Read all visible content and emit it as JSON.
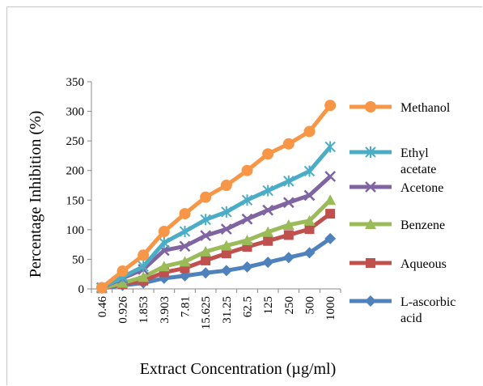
{
  "chart_data": {
    "type": "line",
    "xlabel": "Extract Concentration (µg/ml)",
    "ylabel": "Percentage Inhibition (%)",
    "ylim": [
      0,
      350
    ],
    "yticks": [
      0,
      50,
      100,
      150,
      200,
      250,
      300,
      350
    ],
    "categories": [
      "0.46",
      "0.926",
      "1.853",
      "3.903",
      "7.81",
      "15.625",
      "31.25",
      "62.5",
      "125",
      "250",
      "500",
      "1000"
    ],
    "grid": false,
    "legend": "right",
    "series": [
      {
        "name": "Methanol",
        "color": "#f79646",
        "marker": "circle",
        "label_lines": [
          "Methanol"
        ],
        "values": [
          2,
          30,
          57,
          97,
          127,
          155,
          175,
          200,
          228,
          245,
          266,
          310
        ]
      },
      {
        "name": "Ethyl acetate",
        "color": "#4bacc6",
        "marker": "asterisk",
        "label_lines": [
          "Ethyl",
          "acetate"
        ],
        "values": [
          2,
          20,
          38,
          78,
          97,
          117,
          130,
          150,
          166,
          182,
          199,
          240
        ]
      },
      {
        "name": "Acetone",
        "color": "#8064a2",
        "marker": "x",
        "label_lines": [
          "Acetone"
        ],
        "values": [
          2,
          18,
          33,
          65,
          72,
          90,
          101,
          118,
          133,
          146,
          158,
          190
        ]
      },
      {
        "name": "Benzene",
        "color": "#9bbb59",
        "marker": "triangle",
        "label_lines": [
          "Benzene"
        ],
        "values": [
          1,
          10,
          20,
          38,
          46,
          63,
          73,
          82,
          96,
          108,
          115,
          150
        ]
      },
      {
        "name": "Aqueous",
        "color": "#c0504d",
        "marker": "square",
        "label_lines": [
          "Aqueous"
        ],
        "values": [
          1,
          8,
          14,
          28,
          35,
          48,
          60,
          71,
          81,
          91,
          101,
          127
        ]
      },
      {
        "name": "L-ascorbic acid",
        "color": "#4f81bd",
        "marker": "diamond",
        "label_lines": [
          "L-ascorbic",
          "acid"
        ],
        "values": [
          1,
          6,
          10,
          18,
          22,
          27,
          31,
          37,
          45,
          53,
          61,
          85
        ]
      }
    ]
  }
}
